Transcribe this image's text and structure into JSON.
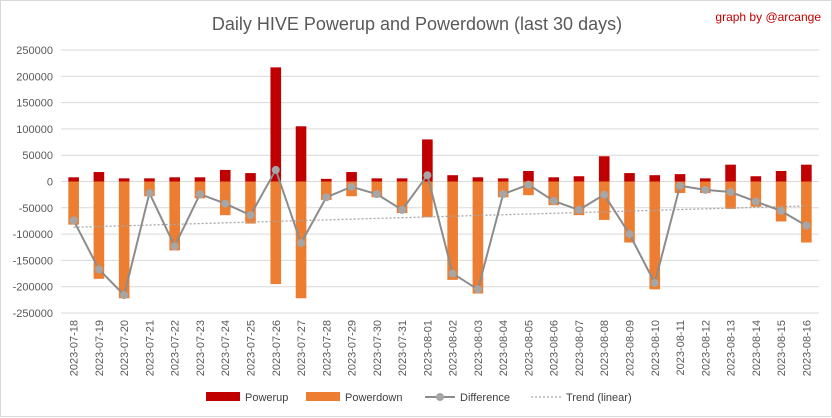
{
  "credit": "graph by @arcange",
  "chart_data": {
    "type": "bar",
    "title": "Daily HIVE Powerup and Powerdown (last 30 days)",
    "xlabel": "",
    "ylabel": "",
    "ylim": [
      -250000,
      250000
    ],
    "yticks": [
      250000,
      200000,
      150000,
      100000,
      50000,
      0,
      -50000,
      -100000,
      -150000,
      -200000,
      -250000
    ],
    "grid": true,
    "legend_position": "bottom",
    "categories": [
      "2023-07-18",
      "2023-07-19",
      "2023-07-20",
      "2023-07-21",
      "2023-07-22",
      "2023-07-23",
      "2023-07-24",
      "2023-07-25",
      "2023-07-26",
      "2023-07-27",
      "2023-07-28",
      "2023-07-29",
      "2023-07-30",
      "2023-07-31",
      "2023-08-01",
      "2023-08-02",
      "2023-08-03",
      "2023-08-04",
      "2023-08-05",
      "2023-08-06",
      "2023-08-07",
      "2023-08-08",
      "2023-08-09",
      "2023-08-10",
      "2023-08-11",
      "2023-08-12",
      "2023-08-13",
      "2023-08-14",
      "2023-08-15",
      "2023-08-16"
    ],
    "series": [
      {
        "name": "Powerup",
        "kind": "bar",
        "color": "#c00000",
        "values": [
          8000,
          18000,
          6000,
          6000,
          8000,
          8000,
          22000,
          16000,
          217000,
          105000,
          5000,
          18000,
          6000,
          6000,
          80000,
          12000,
          8000,
          6000,
          20000,
          8000,
          10000,
          48000,
          16000,
          12000,
          14000,
          6000,
          32000,
          10000,
          20000,
          32000
        ]
      },
      {
        "name": "Powerdown",
        "kind": "bar",
        "color": "#ed7d31",
        "values": [
          -82000,
          -185000,
          -222000,
          -28000,
          -131000,
          -32000,
          -64000,
          -80000,
          -195000,
          -222000,
          -35000,
          -28000,
          -30000,
          -60000,
          -68000,
          -187000,
          -213000,
          -30000,
          -26000,
          -45000,
          -64000,
          -73000,
          -116000,
          -205000,
          -22000,
          -22000,
          -52000,
          -48000,
          -76000,
          -116000
        ]
      },
      {
        "name": "Difference",
        "kind": "line",
        "color": "#8c8c8c",
        "values": [
          -74000,
          -167000,
          -216000,
          -22000,
          -123000,
          -24000,
          -42000,
          -64000,
          22000,
          -117000,
          -30000,
          -10000,
          -24000,
          -54000,
          12000,
          -175000,
          -205000,
          -24000,
          -6000,
          -37000,
          -54000,
          -25000,
          -100000,
          -193000,
          -8000,
          -16000,
          -20000,
          -38000,
          -56000,
          -84000
        ]
      },
      {
        "name": "Trend (linear)",
        "kind": "trend",
        "color": "#a6a6a6",
        "values": [
          -87000,
          -85600,
          -84200,
          -82800,
          -81400,
          -80000,
          -78600,
          -77200,
          -75800,
          -74400,
          -73000,
          -71600,
          -70200,
          -68800,
          -67400,
          -66000,
          -64600,
          -63200,
          -61800,
          -60400,
          -59000,
          -57600,
          -56200,
          -54800,
          -53400,
          -52000,
          -50600,
          -49200,
          -47800,
          -46400
        ]
      }
    ]
  }
}
